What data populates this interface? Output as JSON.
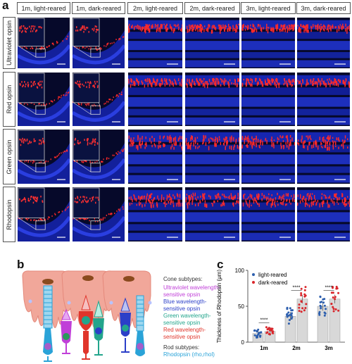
{
  "panel_a": {
    "letter": "a",
    "columns": [
      "1m, light-reared",
      "1m, dark-reared",
      "2m, light-reared",
      "2m, dark-reared",
      "3m, light-reared",
      "3m, dark-reared"
    ],
    "rows": [
      "Ultraviolet opsin",
      "Red opsin",
      "Green opsin",
      "Rhodopsin"
    ]
  },
  "panel_b": {
    "letter": "b",
    "cone_title": "Cone subtypes:",
    "cones": [
      {
        "label": "Ultraviolet wavelength-sensitive opsin",
        "line1": "Ultraviolet wavelength-",
        "line2": "sensitive opsin",
        "color": "#c03fd8"
      },
      {
        "label": "Blue wavelength-sensitive opsin",
        "line1": "Blue wavelength-",
        "line2": "sensitive opsin",
        "color": "#2b3fc8"
      },
      {
        "label": "Green wavelength-sensitive opsin",
        "line1": "Green wavelength-",
        "line2": "sensitive opsin",
        "color": "#23a58c"
      },
      {
        "label": "Red wavelength-sensitive opsin",
        "line1": "Red wavelength-",
        "line2": "sensitive opsin",
        "color": "#e0352b"
      }
    ],
    "rod_title": "Rod subtypes:",
    "rod": {
      "label": "Rhodopsin (rho,rhol)",
      "color": "#2aa3d8"
    }
  },
  "panel_c": {
    "letter": "c",
    "significance": "****"
  },
  "chart_data": {
    "type": "bar",
    "categories": [
      "1m",
      "2m",
      "3m"
    ],
    "series": [
      {
        "name": "light-reared",
        "values": [
          12,
          36,
          50
        ],
        "color": "#2d5fae"
      },
      {
        "name": "dark-reared",
        "values": [
          15,
          60,
          60
        ],
        "color": "#d9262b"
      }
    ],
    "title": "",
    "xlabel": "",
    "ylabel": "Thickness of Rhodopsin (μm)",
    "ylim": [
      0,
      100
    ],
    "yticks": [
      0,
      50,
      100
    ],
    "significance": [
      "****",
      "****",
      "****"
    ],
    "legend_position": "top-left",
    "bar_fill": "#d8d8d8"
  }
}
